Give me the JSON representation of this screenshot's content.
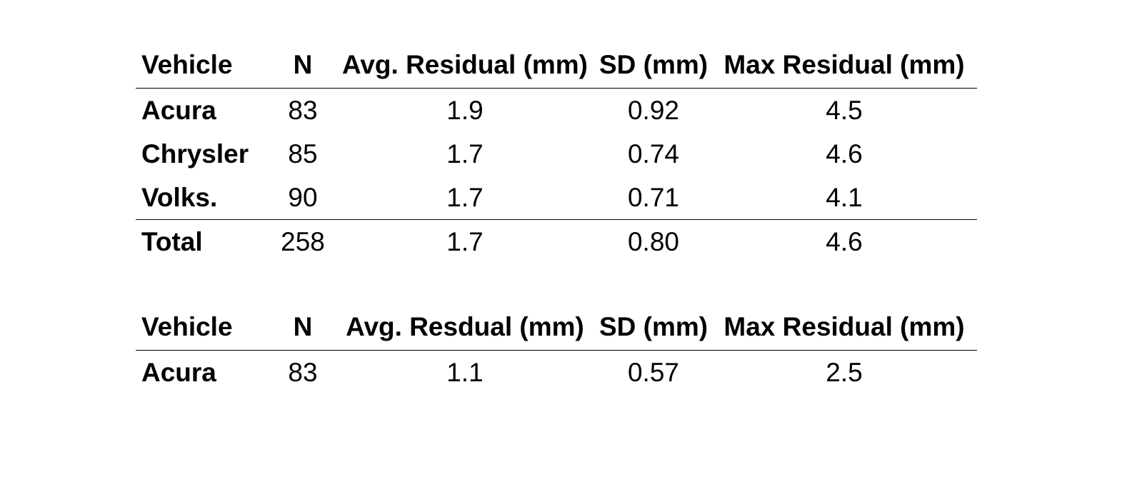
{
  "tables": [
    {
      "headers": [
        "Vehicle",
        "N",
        "Avg. Residual (mm)",
        "SD (mm)",
        "Max Residual (mm)"
      ],
      "rows": [
        [
          "Acura",
          "83",
          "1.9",
          "0.92",
          "4.5"
        ],
        [
          "Chrysler",
          "85",
          "1.7",
          "0.74",
          "4.6"
        ],
        [
          "Volks.",
          "90",
          "1.7",
          "0.71",
          "4.1"
        ]
      ],
      "total": [
        "Total",
        "258",
        "1.7",
        "0.80",
        "4.6"
      ]
    },
    {
      "headers": [
        "Vehicle",
        "N",
        "Avg. Resdual (mm)",
        "SD (mm)",
        "Max Residual (mm)"
      ],
      "rows": [
        [
          "Acura",
          "83",
          "1.1",
          "0.57",
          "2.5"
        ]
      ]
    }
  ]
}
